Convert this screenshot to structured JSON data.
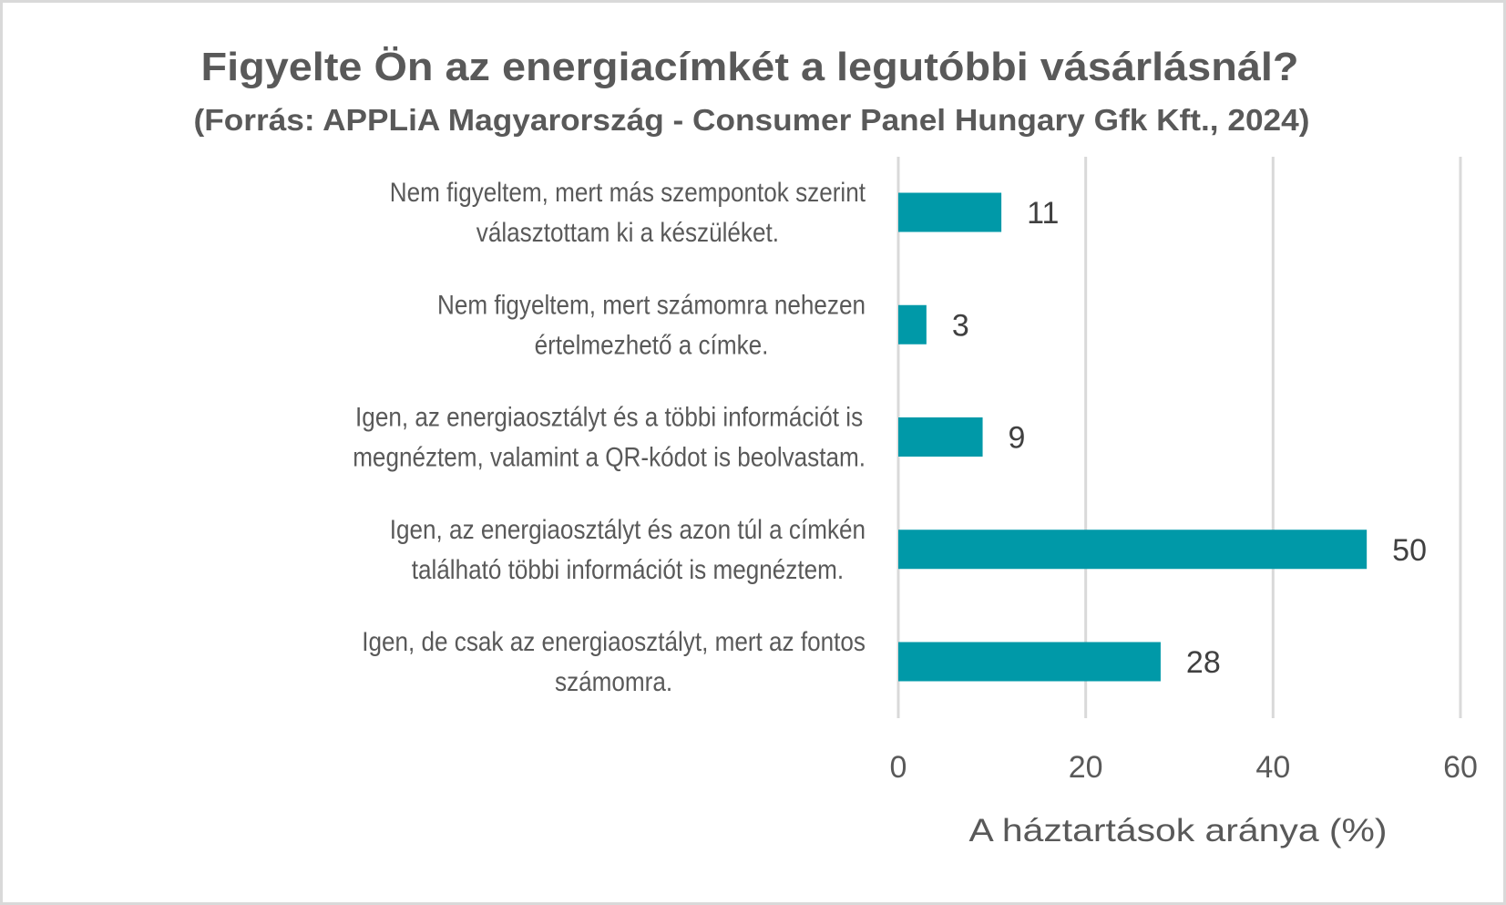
{
  "chart_data": {
    "type": "bar",
    "orientation": "horizontal",
    "title": "Figyelte Ön az energiacímkét a legutóbbi vásárlásnál?",
    "subtitle": "(Forrás: APPLiA Magyarország - Consumer Panel Hungary Gfk Kft., 2024)",
    "categories": [
      [
        "Nem figyeltem, mert más szempontok szerint",
        "választottam ki a készüléket."
      ],
      [
        "Nem figyeltem, mert számomra nehezen",
        "értelmezhető a címke."
      ],
      [
        "Igen, az energiaosztályt és a többi információt is",
        "megnéztem, valamint a QR-kódot is beolvastam."
      ],
      [
        "Igen, az energiaosztályt és azon túl a címkén",
        "található többi információt is megnéztem."
      ],
      [
        "Igen, de csak az energiaosztályt, mert az fontos",
        "számomra."
      ]
    ],
    "values": [
      11,
      3,
      9,
      50,
      28
    ],
    "data_labels": [
      "11",
      "3",
      "9",
      "50",
      "28"
    ],
    "xlabel": "A háztartások aránya (%)",
    "ylabel": "",
    "xlim": [
      0,
      60
    ],
    "xticks": [
      0,
      20,
      40,
      60
    ],
    "xtick_labels": [
      "0",
      "20",
      "40",
      "60"
    ],
    "grid": true,
    "legend": "none",
    "colors": {
      "bar": "#0099A8",
      "gridline": "#D9D9D9",
      "text": "#595959",
      "data_label": "#404040",
      "border": "#D9D9D9"
    }
  }
}
